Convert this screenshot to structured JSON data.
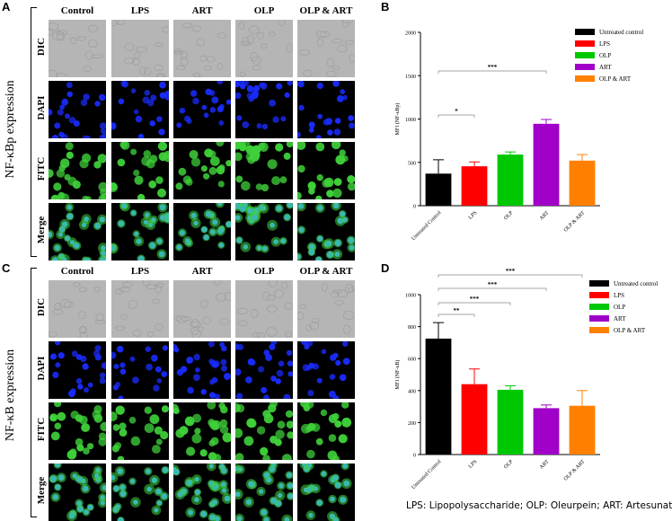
{
  "panels": {
    "A": {
      "letter": "A",
      "side_label": "NF-κBp expression"
    },
    "B": {
      "letter": "B"
    },
    "C": {
      "letter": "C",
      "side_label": "NF-κB expression"
    },
    "D": {
      "letter": "D"
    }
  },
  "micro": {
    "columns": [
      "Control",
      "LPS",
      "ART",
      "OLP",
      "OLP & ART"
    ],
    "rows": [
      "DIC",
      "DAPI",
      "FITC",
      "Merge"
    ],
    "colors": {
      "dapi": "#1a2cff",
      "fitc": "#3fd23a",
      "merge": "#3ab8b0",
      "dic": "#b5b5b5"
    }
  },
  "caption": "LPS: Lipopolysaccharide; OLP: Oleurpein; ART: Artesunate",
  "chart_data": [
    {
      "type": "bar",
      "title": "",
      "xlabel": "",
      "ylabel": "MFI (NF-κBp)",
      "ylim": [
        0,
        2000
      ],
      "yticks": [
        0,
        500,
        1000,
        1500,
        2000
      ],
      "categories": [
        "Untreated Control",
        "LPS",
        "OLP",
        "ART",
        "OLP & ART"
      ],
      "values": [
        370,
        455,
        590,
        945,
        520
      ],
      "errors": [
        160,
        50,
        30,
        50,
        70
      ],
      "colors": [
        "#000000",
        "#ff0000",
        "#00c800",
        "#a000c8",
        "#ff8000"
      ],
      "legend": [
        "Untreated control",
        "LPS",
        "OLP",
        "ART",
        "OLP & ART"
      ],
      "legend_position": "top-right",
      "significance": [
        {
          "from": 0,
          "to": 1,
          "label": "*"
        },
        {
          "from": 0,
          "to": 3,
          "label": "***"
        }
      ]
    },
    {
      "type": "bar",
      "title": "",
      "xlabel": "",
      "ylabel": "MFI (NF-κB)",
      "ylim": [
        0,
        1000
      ],
      "yticks": [
        0,
        200,
        400,
        600,
        800,
        1000
      ],
      "categories": [
        "Untreated Control",
        "LPS",
        "OLP",
        "ART",
        "OLP & ART"
      ],
      "values": [
        725,
        440,
        405,
        290,
        305
      ],
      "errors": [
        100,
        95,
        25,
        20,
        95
      ],
      "colors": [
        "#000000",
        "#ff0000",
        "#00c800",
        "#a000c8",
        "#ff8000"
      ],
      "legend": [
        "Untreated control",
        "LPS",
        "OLP",
        "ART",
        "OLP & ART"
      ],
      "legend_position": "top-right",
      "significance": [
        {
          "from": 0,
          "to": 1,
          "label": "**"
        },
        {
          "from": 0,
          "to": 2,
          "label": "***"
        },
        {
          "from": 0,
          "to": 3,
          "label": "***"
        },
        {
          "from": 0,
          "to": 4,
          "label": "***"
        }
      ]
    }
  ]
}
